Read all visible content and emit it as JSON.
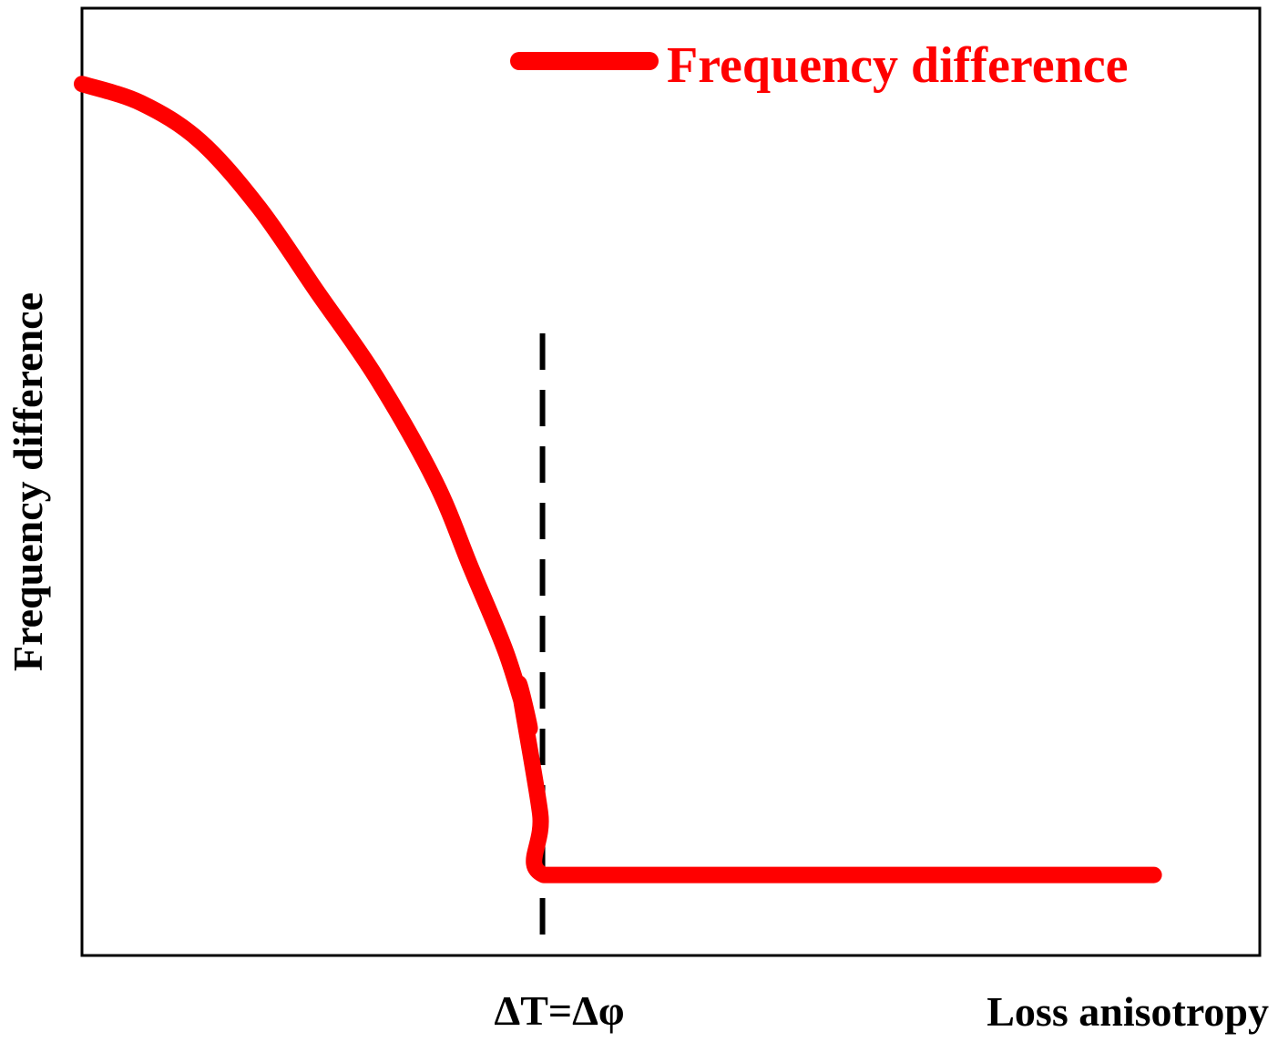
{
  "chart_data": {
    "type": "line",
    "title": "",
    "xlabel": "Loss anisotropy",
    "ylabel": "Frequency difference",
    "xlim": [
      0,
      1
    ],
    "ylim": [
      0,
      1
    ],
    "grid": false,
    "legend_position": "top-right",
    "series": [
      {
        "name": "Frequency difference",
        "color": "#ff0000",
        "x": [
          0.0,
          0.05,
          0.1,
          0.15,
          0.2,
          0.25,
          0.3,
          0.33,
          0.36,
          0.38,
          0.371,
          0.389,
          0.392,
          0.5,
          0.6,
          0.7,
          0.8,
          0.91
        ],
        "y": [
          0.92,
          0.9,
          0.86,
          0.79,
          0.7,
          0.61,
          0.5,
          0.41,
          0.32,
          0.24,
          0.285,
          0.15,
          0.085,
          0.085,
          0.085,
          0.085,
          0.085,
          0.085
        ]
      }
    ],
    "annotations": [
      {
        "text": "ΔT=Δφ",
        "x": 0.391,
        "style": "dashed-vertical-line"
      }
    ]
  }
}
